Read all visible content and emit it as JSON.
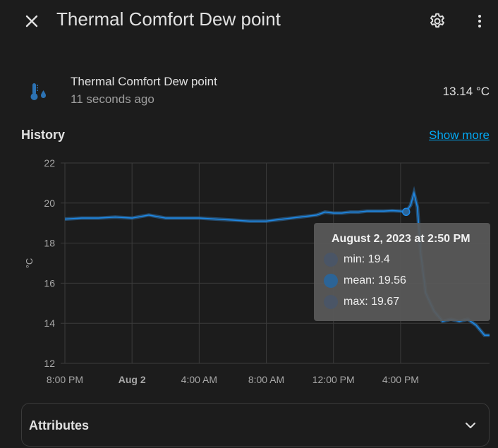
{
  "header": {
    "title": "Thermal Comfort Dew point"
  },
  "entity": {
    "name": "Thermal Comfort Dew point",
    "last_changed": "11 seconds ago",
    "state": "13.14 °C",
    "icon": "thermometer-water-icon"
  },
  "history": {
    "title": "History",
    "show_more": "Show more"
  },
  "chart_data": {
    "type": "line",
    "ylabel": "°C",
    "ylim": [
      12,
      22
    ],
    "yticks": [
      12,
      14,
      16,
      18,
      20,
      22
    ],
    "xticks": [
      "8:00 PM",
      "Aug 2",
      "4:00 AM",
      "8:00 AM",
      "12:00 PM",
      "4:00 PM"
    ],
    "x_hours": [
      0,
      1,
      2,
      3,
      4,
      5,
      6,
      7,
      8,
      9,
      10,
      11,
      12,
      13,
      14,
      14.5,
      15,
      15.5,
      16,
      16.5,
      17,
      17.5,
      18,
      18.5,
      19,
      19.5,
      20,
      20.33,
      20.6,
      20.8,
      21.0,
      21.2,
      21.5,
      22.0,
      22.5,
      23.0,
      23.5,
      24.0,
      24.5,
      25.0,
      25.3
    ],
    "series": [
      {
        "values": [
          19.2,
          19.25,
          19.25,
          19.3,
          19.25,
          19.4,
          19.25,
          19.25,
          19.25,
          19.2,
          19.15,
          19.1,
          19.1,
          19.2,
          19.3,
          19.35,
          19.4,
          19.55,
          19.5,
          19.5,
          19.55,
          19.55,
          19.6,
          19.6,
          19.6,
          19.62,
          19.6,
          19.56,
          19.9,
          20.5,
          19.8,
          17.5,
          15.5,
          14.6,
          14.1,
          14.2,
          14.1,
          14.2,
          13.9,
          13.4,
          13.4
        ]
      }
    ],
    "highlight_x_hours": 20.33,
    "tooltip": {
      "title": "August 2, 2023 at 2:50 PM",
      "rows": [
        {
          "label": "min: 19.4",
          "color": "#4a5566"
        },
        {
          "label": "mean: 19.56",
          "color": "#2c6496"
        },
        {
          "label": "max: 19.67",
          "color": "#4a5566"
        }
      ]
    },
    "colors": {
      "line": "#1e88e5",
      "band": "#2a5f8f",
      "grid": "#3b3b3b",
      "tick": "#a8a8a8"
    }
  },
  "attributes": {
    "label": "Attributes"
  }
}
